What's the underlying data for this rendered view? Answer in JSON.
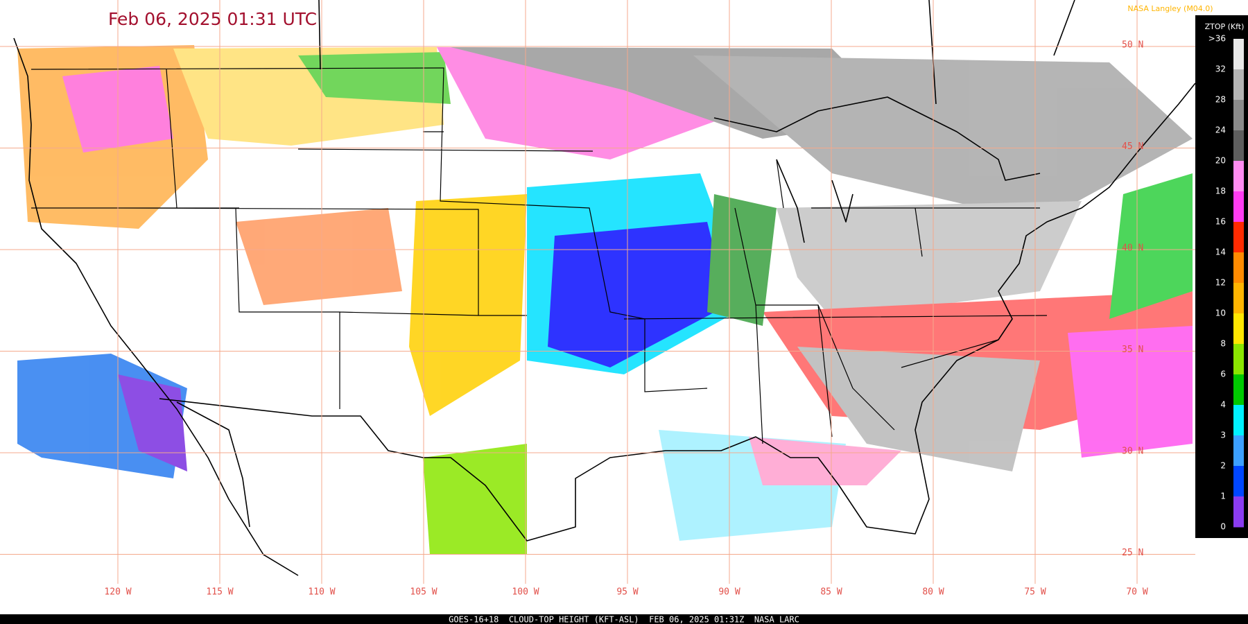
{
  "header": {
    "title": "Feb 06, 2025 01:31 UTC",
    "credit": "NASA Langley (M04.0)"
  },
  "colorbar": {
    "title": "ZTOP (Kft)",
    "labels": [
      ">36",
      "32",
      "28",
      "24",
      "20",
      "18",
      "16",
      "14",
      "12",
      "10",
      "8",
      "6",
      "4",
      "3",
      "2",
      "1",
      "0"
    ],
    "colors": [
      "#e8e8e8",
      "#b4b4b4",
      "#8a8a8a",
      "#5e5e5e",
      "#ff8cf0",
      "#ff3cf0",
      "#ff2a00",
      "#ff8a00",
      "#ffb400",
      "#ffe600",
      "#8ae600",
      "#00c800",
      "#00f0ff",
      "#3ca0ff",
      "#0046ff",
      "#8a3cf0"
    ]
  },
  "grid": {
    "latitudes": [
      "50 N",
      "45 N",
      "40 N",
      "35 N",
      "30 N",
      "25 N"
    ],
    "longitudes": [
      "120 W",
      "115 W",
      "110 W",
      "105 W",
      "100 W",
      "95 W",
      "90 W",
      "85 W",
      "80 W",
      "75 W",
      "70 W"
    ]
  },
  "footer": "GOES-16+18  CLOUD-TOP HEIGHT (KFT-ASL)  FEB 06, 2025 01:31Z  NASA LARC"
}
